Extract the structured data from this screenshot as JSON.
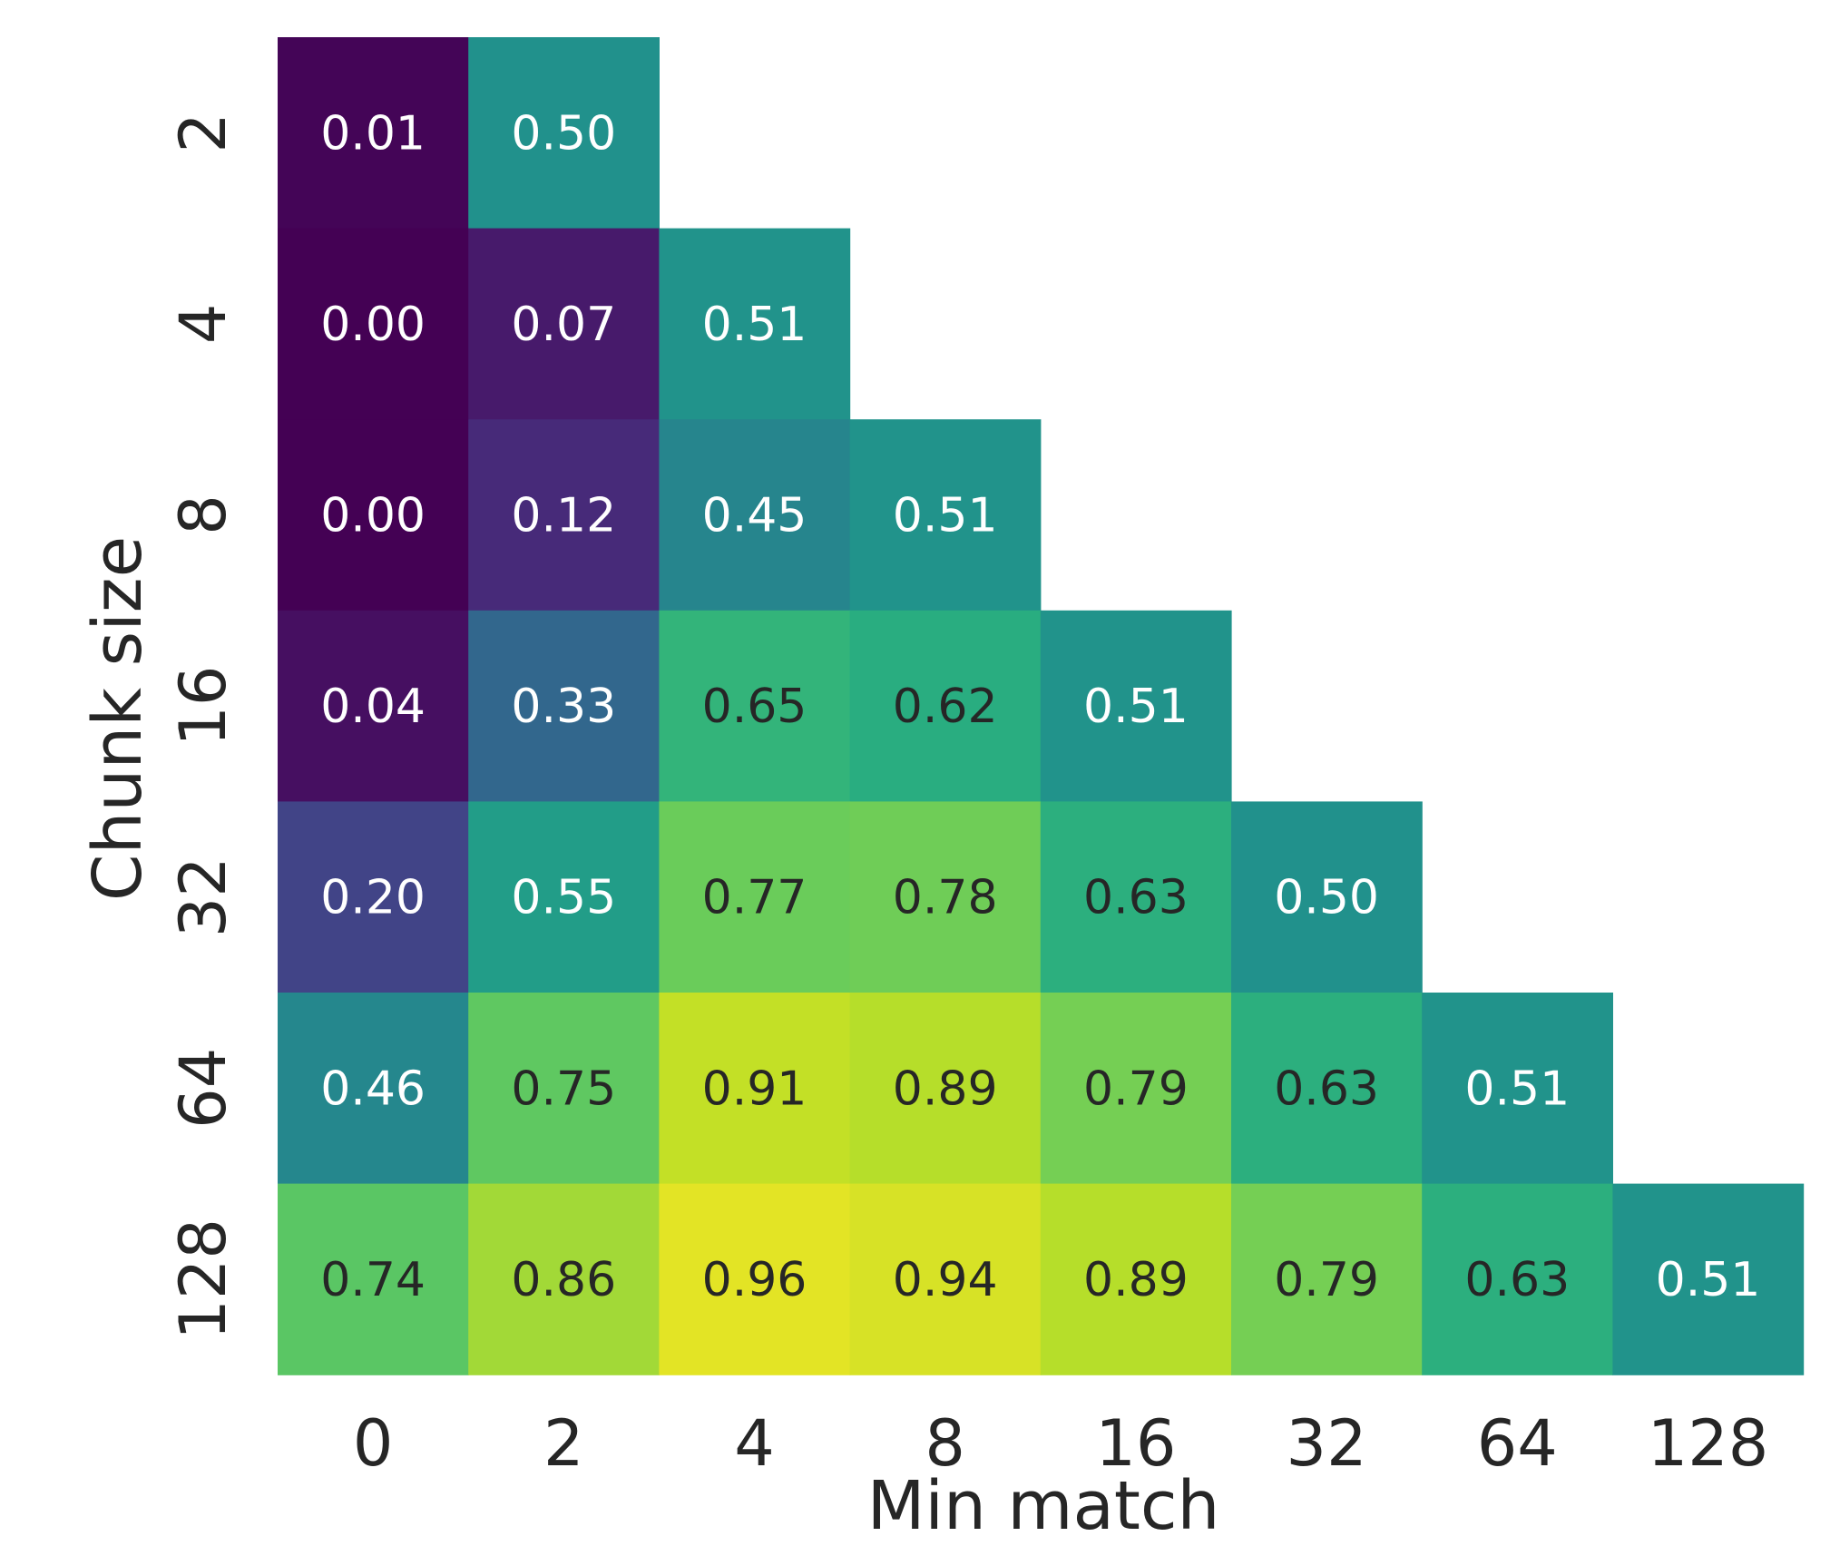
{
  "chart_data": {
    "type": "heatmap",
    "title": "",
    "xlabel": "Min match",
    "ylabel": "Chunk size",
    "x_categories": [
      "0",
      "2",
      "4",
      "8",
      "16",
      "32",
      "64",
      "128"
    ],
    "y_categories": [
      "2",
      "4",
      "8",
      "16",
      "32",
      "64",
      "128"
    ],
    "values": [
      [
        0.01,
        0.5,
        null,
        null,
        null,
        null,
        null,
        null
      ],
      [
        0.0,
        0.07,
        0.51,
        null,
        null,
        null,
        null,
        null
      ],
      [
        0.0,
        0.12,
        0.45,
        0.51,
        null,
        null,
        null,
        null
      ],
      [
        0.04,
        0.33,
        0.65,
        0.62,
        0.51,
        null,
        null,
        null
      ],
      [
        0.2,
        0.55,
        0.77,
        0.78,
        0.63,
        0.5,
        null,
        null
      ],
      [
        0.46,
        0.75,
        0.91,
        0.89,
        0.79,
        0.63,
        0.51,
        null
      ],
      [
        0.74,
        0.86,
        0.96,
        0.94,
        0.89,
        0.79,
        0.63,
        0.51
      ]
    ],
    "colormap": "viridis",
    "annotations": "values shown with 2 decimals",
    "grid": false,
    "legend": "none"
  }
}
